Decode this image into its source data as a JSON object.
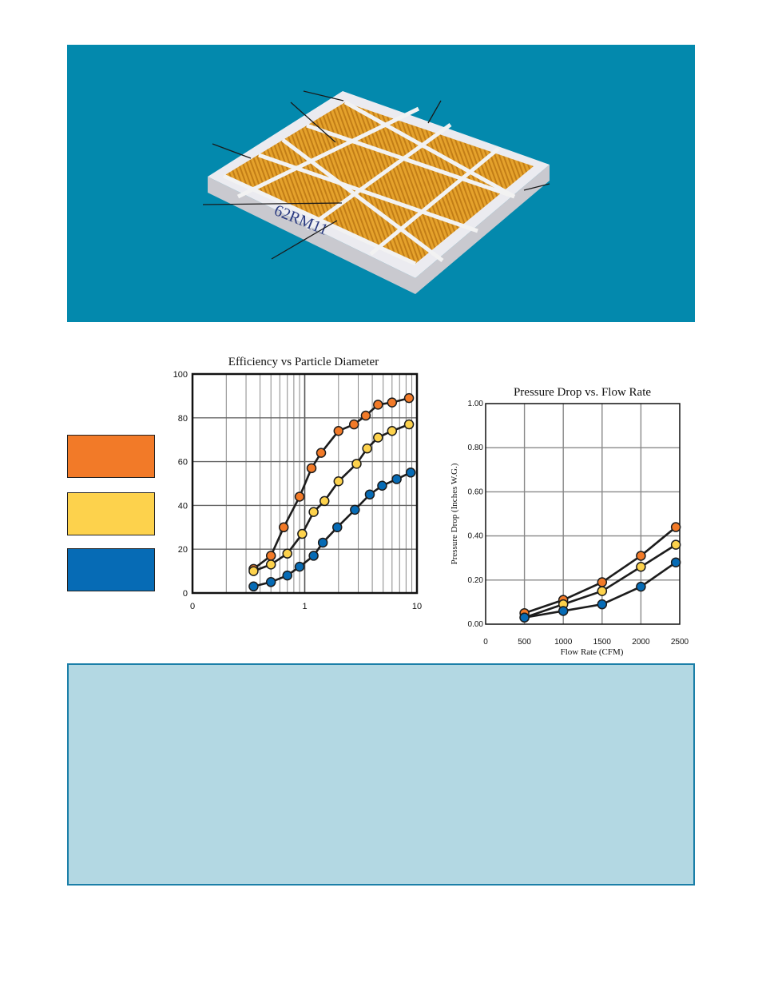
{
  "colors": {
    "hero_bg": "#0389ad",
    "series_high": "#f27a28",
    "series_mid": "#fdd24c",
    "series_low": "#066bb5",
    "info_box_bg": "#b3d8e3",
    "info_box_border": "#1b7fa8"
  },
  "product": {
    "label": "62RM11",
    "image": "pleated-air-filter-photo"
  },
  "legend": [
    {
      "color": "#f27a28"
    },
    {
      "color": "#fdd24c"
    },
    {
      "color": "#066bb5"
    }
  ],
  "chart_data": [
    {
      "type": "line",
      "title": "Efficiency vs Particle Diameter",
      "xscale": "log",
      "xlim": [
        0.1,
        10
      ],
      "ylim": [
        0,
        100
      ],
      "xticks": [
        "0",
        "1",
        "10"
      ],
      "yticks": [
        "0",
        "20",
        "40",
        "60",
        "80",
        "100"
      ],
      "grid": true,
      "series": [
        {
          "color": "#f27a28",
          "points": [
            [
              0.35,
              11
            ],
            [
              0.5,
              17
            ],
            [
              0.65,
              30
            ],
            [
              0.9,
              44
            ],
            [
              1.15,
              57
            ],
            [
              1.4,
              64
            ],
            [
              2.0,
              74
            ],
            [
              2.75,
              77
            ],
            [
              3.5,
              81
            ],
            [
              4.5,
              86
            ],
            [
              6.0,
              87
            ],
            [
              8.5,
              89
            ]
          ]
        },
        {
          "color": "#fdd24c",
          "points": [
            [
              0.35,
              10
            ],
            [
              0.5,
              13
            ],
            [
              0.7,
              18
            ],
            [
              0.95,
              27
            ],
            [
              1.2,
              37
            ],
            [
              1.5,
              42
            ],
            [
              2.0,
              51
            ],
            [
              2.9,
              59
            ],
            [
              3.6,
              66
            ],
            [
              4.5,
              71
            ],
            [
              6.0,
              74
            ],
            [
              8.5,
              77
            ]
          ]
        },
        {
          "color": "#066bb5",
          "points": [
            [
              0.35,
              3
            ],
            [
              0.5,
              5
            ],
            [
              0.7,
              8
            ],
            [
              0.9,
              12
            ],
            [
              1.2,
              17
            ],
            [
              1.45,
              23
            ],
            [
              1.95,
              30
            ],
            [
              2.8,
              38
            ],
            [
              3.8,
              45
            ],
            [
              4.9,
              49
            ],
            [
              6.6,
              52
            ],
            [
              8.8,
              55
            ]
          ]
        }
      ]
    },
    {
      "type": "line",
      "title": "Pressure Drop vs. Flow Rate",
      "xlabel": "Flow Rate (CFM)",
      "ylabel": "Pressure Drop (Inches W.G.)",
      "xlim": [
        0,
        2500
      ],
      "ylim": [
        0,
        1.0
      ],
      "xticks": [
        "0",
        "500",
        "1000",
        "1500",
        "2000",
        "2500"
      ],
      "yticks": [
        "0.00",
        "0.20",
        "0.40",
        "0.60",
        "0.80",
        "1.00"
      ],
      "grid": true,
      "series": [
        {
          "color": "#f27a28",
          "points": [
            [
              500,
              0.05
            ],
            [
              1000,
              0.11
            ],
            [
              1500,
              0.19
            ],
            [
              2000,
              0.31
            ],
            [
              2450,
              0.44
            ]
          ]
        },
        {
          "color": "#fdd24c",
          "points": [
            [
              500,
              0.03
            ],
            [
              1000,
              0.09
            ],
            [
              1500,
              0.15
            ],
            [
              2000,
              0.26
            ],
            [
              2450,
              0.36
            ]
          ]
        },
        {
          "color": "#066bb5",
          "points": [
            [
              500,
              0.03
            ],
            [
              1000,
              0.06
            ],
            [
              1500,
              0.09
            ],
            [
              2000,
              0.17
            ],
            [
              2450,
              0.28
            ]
          ]
        }
      ]
    }
  ]
}
